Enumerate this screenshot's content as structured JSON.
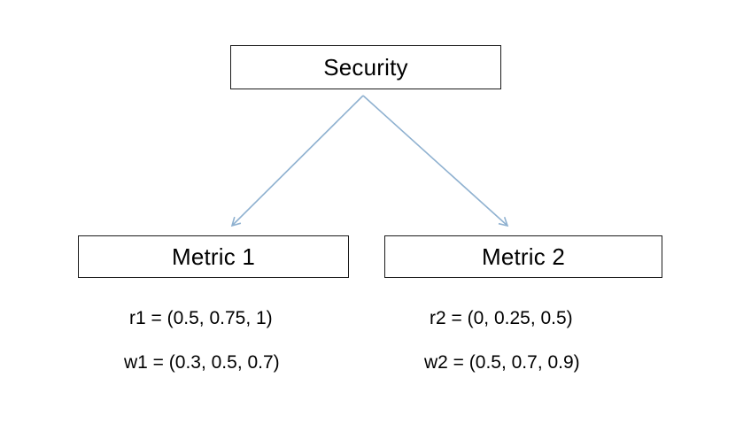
{
  "diagram": {
    "root": {
      "label": "Security"
    },
    "children": [
      {
        "label": "Metric 1",
        "r": "r1 = (0.5, 0.75, 1)",
        "w": "w1 = (0.3, 0.5, 0.7)"
      },
      {
        "label": "Metric 2",
        "r": "r2 = (0, 0.25, 0.5)",
        "w": "w2 = (0.5, 0.7, 0.9)"
      }
    ],
    "edge_color": "#8fb1d0"
  }
}
